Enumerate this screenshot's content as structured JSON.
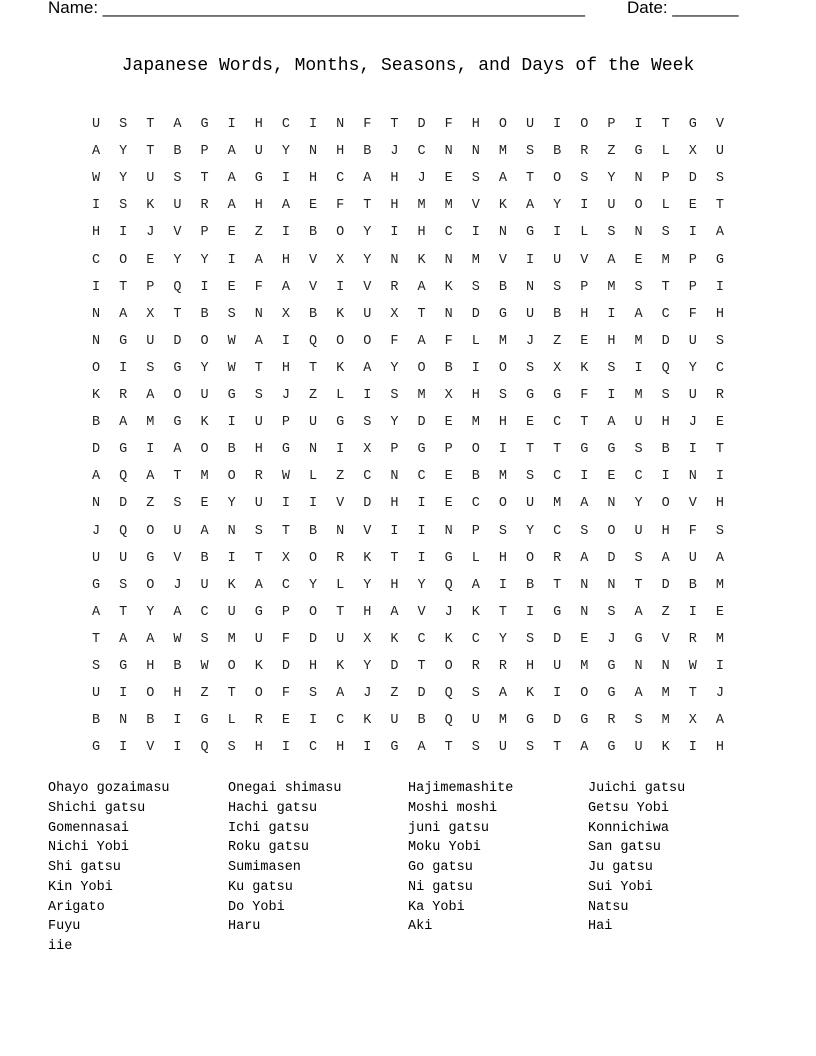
{
  "header": {
    "name_label": "Name: ___________________________________________________",
    "date_label": "Date: _______"
  },
  "title": "Japanese Words, Months, Seasons, and Days of the Week",
  "grid": [
    "USTAGIHCINFTDFHOUIOPITGV",
    "AYTBPAUYNHBJCNNMSBRZGLXU",
    "WYUSTAGIHCAHJESATOSYNPDS",
    "ISKURAHAEFTHMMVKAYIUOLET",
    "HIJVPEZIBOYIHCINGILSNSIA",
    "COEYYIAHVXYNKNMVIUVAEMPG",
    "ITPQIEFAVIVRAKSBNSPMSTPI",
    "NAXTBSNXBKUXTNDGUBHIACFH",
    "NGUDOWAIQOOFAFLMJZEHMDUS",
    "OISGYWTHTKAYOBIOSXKSIQYC",
    "KRAOUGSJZLISMXHSGGFIMSUR",
    "BAMGKIUPUGSYDEMHECTAUHJE",
    "DGIAOBHGNIXPGPOITTGGSBIT",
    "AQATMORWLZCNCEBMSCIECINI",
    "NDZSEYUIIVDHIECOUMANYOVH",
    "JQOUANSTBNVIINPSYCSOUHFS",
    "UUGVBITXORKTIGLHORADSAUA",
    "GSOJUKACYLYHYQAIBTNNTDBM",
    "ATYACUGPOTHAVJKTIGNSAZIE",
    "TAAWSMUFDUXKCKCYSDEJGVRM",
    "SGHBWOKDHKYDTORRHUMGNNWI",
    "UIOHZTOFSAJZDQSAKIOGAMTJ",
    "BNBIGLREICKUBQUMGDGRSMXA",
    "GIVIQSHICHIGATSUSTAGUKIH"
  ],
  "word_columns": [
    [
      "Ohayo gozaimasu",
      "Shichi gatsu",
      "Gomennasai",
      "Nichi Yobi",
      "Shi gatsu",
      "Kin Yobi",
      "Arigato",
      "Fuyu",
      "iie"
    ],
    [
      "Onegai shimasu",
      "Hachi gatsu",
      "Ichi gatsu",
      "Roku gatsu",
      "Sumimasen",
      "Ku gatsu",
      "Do Yobi",
      "Haru"
    ],
    [
      "Hajimemashite",
      "Moshi moshi",
      "juni gatsu",
      "Moku Yobi",
      "Go gatsu",
      "Ni gatsu",
      "Ka Yobi",
      "Aki"
    ],
    [
      "Juichi gatsu",
      "Getsu Yobi",
      "Konnichiwa",
      "San gatsu",
      "Ju gatsu",
      "Sui Yobi",
      "Natsu",
      "Hai"
    ]
  ]
}
